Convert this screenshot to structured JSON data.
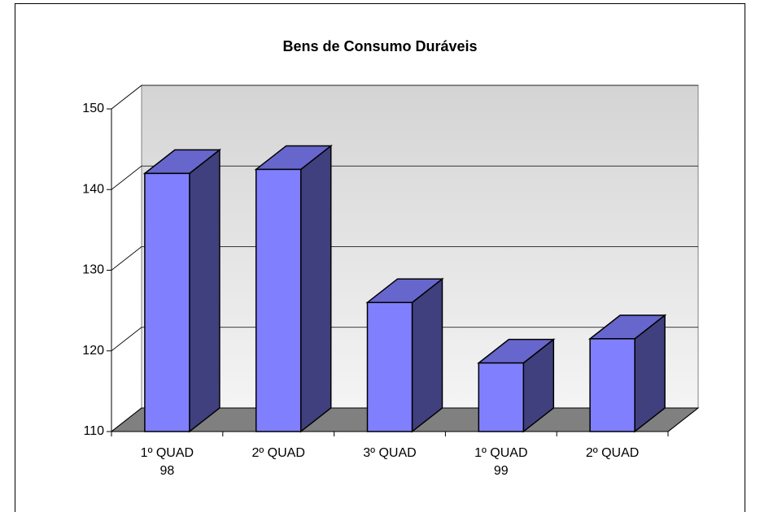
{
  "chart_data": {
    "type": "bar3d",
    "title": "Bens de Consumo Duráveis",
    "categories": [
      "1º QUAD\n98",
      "2º QUAD",
      "3º QUAD",
      "1º QUAD\n99",
      "2º QUAD"
    ],
    "values": [
      142,
      142.5,
      126,
      118.5,
      121.5
    ],
    "color": "#8080ff",
    "ylim": [
      110,
      150
    ],
    "yticks": [
      110,
      120,
      130,
      140,
      150
    ],
    "grid": true
  }
}
